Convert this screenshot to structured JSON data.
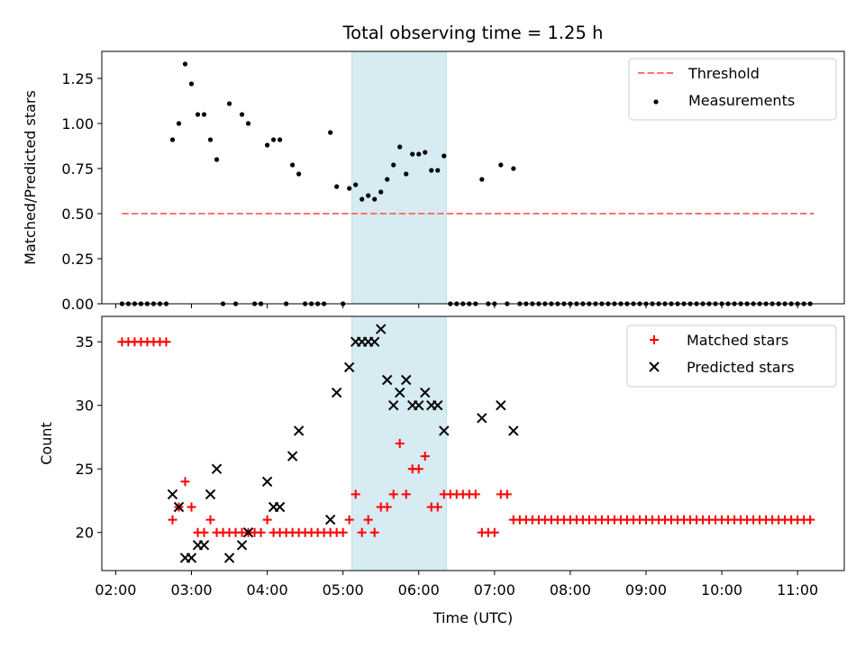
{
  "figure_title": "Total observing time = 1.25 h",
  "colors": {
    "threshold": "#ff7373",
    "measurements": "#000000",
    "matched": "#ff0000",
    "predicted": "#000000",
    "highlight": "#add8e6"
  },
  "chart_data": [
    {
      "type": "scatter",
      "title": "Total observing time = 1.25 h",
      "xlabel": "",
      "ylabel": "Matched/Predicted stars",
      "xlim": [
        "01:49",
        "11:37"
      ],
      "ylim": [
        0,
        1.4
      ],
      "x_ticks": [
        "02:00",
        "03:00",
        "04:00",
        "05:00",
        "06:00",
        "07:00",
        "08:00",
        "09:00",
        "10:00",
        "11:00"
      ],
      "x_ticklabels_visible": false,
      "y_ticks": [
        "0.00",
        "0.25",
        "0.50",
        "0.75",
        "1.00",
        "1.25"
      ],
      "highlight_span": [
        "05:07",
        "06:22"
      ],
      "legend_position": "upper right",
      "series": [
        {
          "name": "Threshold",
          "kind": "dashed-line",
          "x": [
            "02:05",
            "11:13"
          ],
          "y": [
            0.5,
            0.5
          ]
        },
        {
          "name": "Measurements",
          "kind": "points",
          "points": [
            [
              "02:05",
              0
            ],
            [
              "02:10",
              0
            ],
            [
              "02:15",
              0
            ],
            [
              "02:20",
              0
            ],
            [
              "02:25",
              0
            ],
            [
              "02:30",
              0
            ],
            [
              "02:35",
              0
            ],
            [
              "02:40",
              0
            ],
            [
              "02:45",
              0.91
            ],
            [
              "02:50",
              1.0
            ],
            [
              "02:55",
              1.33
            ],
            [
              "03:00",
              1.22
            ],
            [
              "03:05",
              1.05
            ],
            [
              "03:10",
              1.05
            ],
            [
              "03:15",
              0.91
            ],
            [
              "03:20",
              0.8
            ],
            [
              "03:25",
              0
            ],
            [
              "03:30",
              1.11
            ],
            [
              "03:35",
              0
            ],
            [
              "03:40",
              1.05
            ],
            [
              "03:45",
              1.0
            ],
            [
              "03:50",
              0
            ],
            [
              "03:55",
              0
            ],
            [
              "04:00",
              0.88
            ],
            [
              "04:05",
              0.91
            ],
            [
              "04:10",
              0.91
            ],
            [
              "04:15",
              0
            ],
            [
              "04:20",
              0.77
            ],
            [
              "04:25",
              0.72
            ],
            [
              "04:30",
              0
            ],
            [
              "04:35",
              0
            ],
            [
              "04:40",
              0
            ],
            [
              "04:45",
              0
            ],
            [
              "04:50",
              0.95
            ],
            [
              "04:55",
              0.65
            ],
            [
              "05:00",
              0
            ],
            [
              "05:05",
              0.64
            ],
            [
              "05:10",
              0.66
            ],
            [
              "05:15",
              0.58
            ],
            [
              "05:20",
              0.6
            ],
            [
              "05:25",
              0.58
            ],
            [
              "05:30",
              0.62
            ],
            [
              "05:35",
              0.69
            ],
            [
              "05:40",
              0.77
            ],
            [
              "05:45",
              0.87
            ],
            [
              "05:50",
              0.72
            ],
            [
              "05:55",
              0.83
            ],
            [
              "06:00",
              0.83
            ],
            [
              "06:05",
              0.84
            ],
            [
              "06:10",
              0.74
            ],
            [
              "06:15",
              0.74
            ],
            [
              "06:20",
              0.82
            ],
            [
              "06:25",
              0
            ],
            [
              "06:30",
              0
            ],
            [
              "06:35",
              0
            ],
            [
              "06:40",
              0
            ],
            [
              "06:45",
              0
            ],
            [
              "06:50",
              0.69
            ],
            [
              "06:55",
              0
            ],
            [
              "07:00",
              0
            ],
            [
              "07:05",
              0.77
            ],
            [
              "07:10",
              0
            ],
            [
              "07:15",
              0.75
            ],
            [
              "07:20",
              0
            ],
            [
              "07:25",
              0
            ],
            [
              "07:30",
              0
            ],
            [
              "07:35",
              0
            ],
            [
              "07:40",
              0
            ],
            [
              "07:45",
              0
            ],
            [
              "07:50",
              0
            ],
            [
              "07:55",
              0
            ],
            [
              "08:00",
              0
            ],
            [
              "08:05",
              0
            ],
            [
              "08:10",
              0
            ],
            [
              "08:15",
              0
            ],
            [
              "08:20",
              0
            ],
            [
              "08:25",
              0
            ],
            [
              "08:30",
              0
            ],
            [
              "08:35",
              0
            ],
            [
              "08:40",
              0
            ],
            [
              "08:45",
              0
            ],
            [
              "08:50",
              0
            ],
            [
              "08:55",
              0
            ],
            [
              "09:00",
              0
            ],
            [
              "09:05",
              0
            ],
            [
              "09:10",
              0
            ],
            [
              "09:15",
              0
            ],
            [
              "09:20",
              0
            ],
            [
              "09:25",
              0
            ],
            [
              "09:30",
              0
            ],
            [
              "09:35",
              0
            ],
            [
              "09:40",
              0
            ],
            [
              "09:45",
              0
            ],
            [
              "09:50",
              0
            ],
            [
              "09:55",
              0
            ],
            [
              "10:00",
              0
            ],
            [
              "10:05",
              0
            ],
            [
              "10:10",
              0
            ],
            [
              "10:15",
              0
            ],
            [
              "10:20",
              0
            ],
            [
              "10:25",
              0
            ],
            [
              "10:30",
              0
            ],
            [
              "10:35",
              0
            ],
            [
              "10:40",
              0
            ],
            [
              "10:45",
              0
            ],
            [
              "10:50",
              0
            ],
            [
              "10:55",
              0
            ],
            [
              "11:00",
              0
            ],
            [
              "11:05",
              0
            ],
            [
              "11:10",
              0
            ]
          ]
        }
      ]
    },
    {
      "type": "scatter",
      "title": "",
      "xlabel": "Time (UTC)",
      "ylabel": "Count",
      "xlim": [
        "01:49",
        "11:37"
      ],
      "ylim": [
        17,
        37
      ],
      "x_ticks": [
        "02:00",
        "03:00",
        "04:00",
        "05:00",
        "06:00",
        "07:00",
        "08:00",
        "09:00",
        "10:00",
        "11:00"
      ],
      "y_ticks": [
        "20",
        "25",
        "30",
        "35"
      ],
      "highlight_span": [
        "05:07",
        "06:22"
      ],
      "legend_position": "upper right",
      "series": [
        {
          "name": "Matched stars",
          "kind": "plus",
          "points": [
            [
              "02:05",
              35
            ],
            [
              "02:10",
              35
            ],
            [
              "02:15",
              35
            ],
            [
              "02:20",
              35
            ],
            [
              "02:25",
              35
            ],
            [
              "02:30",
              35
            ],
            [
              "02:35",
              35
            ],
            [
              "02:40",
              35
            ],
            [
              "02:45",
              21
            ],
            [
              "02:50",
              22
            ],
            [
              "02:55",
              24
            ],
            [
              "03:00",
              22
            ],
            [
              "03:05",
              20
            ],
            [
              "03:10",
              20
            ],
            [
              "03:15",
              21
            ],
            [
              "03:20",
              20
            ],
            [
              "03:25",
              20
            ],
            [
              "03:30",
              20
            ],
            [
              "03:35",
              20
            ],
            [
              "03:40",
              20
            ],
            [
              "03:45",
              20
            ],
            [
              "03:50",
              20
            ],
            [
              "03:55",
              20
            ],
            [
              "04:00",
              21
            ],
            [
              "04:05",
              20
            ],
            [
              "04:10",
              20
            ],
            [
              "04:15",
              20
            ],
            [
              "04:20",
              20
            ],
            [
              "04:25",
              20
            ],
            [
              "04:30",
              20
            ],
            [
              "04:35",
              20
            ],
            [
              "04:40",
              20
            ],
            [
              "04:45",
              20
            ],
            [
              "04:50",
              20
            ],
            [
              "04:55",
              20
            ],
            [
              "05:00",
              20
            ],
            [
              "05:05",
              21
            ],
            [
              "05:10",
              23
            ],
            [
              "05:15",
              20
            ],
            [
              "05:20",
              21
            ],
            [
              "05:25",
              20
            ],
            [
              "05:30",
              22
            ],
            [
              "05:35",
              22
            ],
            [
              "05:40",
              23
            ],
            [
              "05:45",
              27
            ],
            [
              "05:50",
              23
            ],
            [
              "05:55",
              25
            ],
            [
              "06:00",
              25
            ],
            [
              "06:05",
              26
            ],
            [
              "06:10",
              22
            ],
            [
              "06:15",
              22
            ],
            [
              "06:20",
              23
            ],
            [
              "06:25",
              23
            ],
            [
              "06:30",
              23
            ],
            [
              "06:35",
              23
            ],
            [
              "06:40",
              23
            ],
            [
              "06:45",
              23
            ],
            [
              "06:50",
              20
            ],
            [
              "06:55",
              20
            ],
            [
              "07:00",
              20
            ],
            [
              "07:05",
              23
            ],
            [
              "07:10",
              23
            ],
            [
              "07:15",
              21
            ],
            [
              "07:20",
              21
            ],
            [
              "07:25",
              21
            ],
            [
              "07:30",
              21
            ],
            [
              "07:35",
              21
            ],
            [
              "07:40",
              21
            ],
            [
              "07:45",
              21
            ],
            [
              "07:50",
              21
            ],
            [
              "07:55",
              21
            ],
            [
              "08:00",
              21
            ],
            [
              "08:05",
              21
            ],
            [
              "08:10",
              21
            ],
            [
              "08:15",
              21
            ],
            [
              "08:20",
              21
            ],
            [
              "08:25",
              21
            ],
            [
              "08:30",
              21
            ],
            [
              "08:35",
              21
            ],
            [
              "08:40",
              21
            ],
            [
              "08:45",
              21
            ],
            [
              "08:50",
              21
            ],
            [
              "08:55",
              21
            ],
            [
              "09:00",
              21
            ],
            [
              "09:05",
              21
            ],
            [
              "09:10",
              21
            ],
            [
              "09:15",
              21
            ],
            [
              "09:20",
              21
            ],
            [
              "09:25",
              21
            ],
            [
              "09:30",
              21
            ],
            [
              "09:35",
              21
            ],
            [
              "09:40",
              21
            ],
            [
              "09:45",
              21
            ],
            [
              "09:50",
              21
            ],
            [
              "09:55",
              21
            ],
            [
              "10:00",
              21
            ],
            [
              "10:05",
              21
            ],
            [
              "10:10",
              21
            ],
            [
              "10:15",
              21
            ],
            [
              "10:20",
              21
            ],
            [
              "10:25",
              21
            ],
            [
              "10:30",
              21
            ],
            [
              "10:35",
              21
            ],
            [
              "10:40",
              21
            ],
            [
              "10:45",
              21
            ],
            [
              "10:50",
              21
            ],
            [
              "10:55",
              21
            ],
            [
              "11:00",
              21
            ],
            [
              "11:05",
              21
            ],
            [
              "11:10",
              21
            ]
          ]
        },
        {
          "name": "Predicted stars",
          "kind": "x",
          "points": [
            [
              "02:45",
              23
            ],
            [
              "02:50",
              22
            ],
            [
              "02:55",
              18
            ],
            [
              "03:00",
              18
            ],
            [
              "03:05",
              19
            ],
            [
              "03:10",
              19
            ],
            [
              "03:15",
              23
            ],
            [
              "03:20",
              25
            ],
            [
              "03:30",
              18
            ],
            [
              "03:40",
              19
            ],
            [
              "03:45",
              20
            ],
            [
              "04:00",
              24
            ],
            [
              "04:05",
              22
            ],
            [
              "04:10",
              22
            ],
            [
              "04:20",
              26
            ],
            [
              "04:25",
              28
            ],
            [
              "04:50",
              21
            ],
            [
              "04:55",
              31
            ],
            [
              "05:05",
              33
            ],
            [
              "05:10",
              35
            ],
            [
              "05:15",
              35
            ],
            [
              "05:20",
              35
            ],
            [
              "05:25",
              35
            ],
            [
              "05:30",
              36
            ],
            [
              "05:35",
              32
            ],
            [
              "05:40",
              30
            ],
            [
              "05:45",
              31
            ],
            [
              "05:50",
              32
            ],
            [
              "05:55",
              30
            ],
            [
              "06:00",
              30
            ],
            [
              "06:05",
              31
            ],
            [
              "06:10",
              30
            ],
            [
              "06:15",
              30
            ],
            [
              "06:20",
              28
            ],
            [
              "06:50",
              29
            ],
            [
              "07:05",
              30
            ],
            [
              "07:15",
              28
            ]
          ]
        }
      ]
    }
  ]
}
